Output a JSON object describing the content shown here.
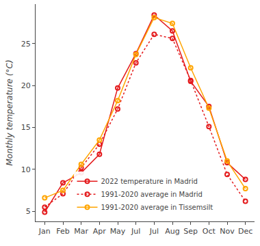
{
  "chart_data": {
    "type": "line",
    "y_label": "Monthly temperature (°C)",
    "categories": [
      "Jan",
      "Feb",
      "Mar",
      "Apr",
      "May",
      "Jul",
      "Jul",
      "Aug",
      "Sep",
      "Oct",
      "Nov",
      "Dec"
    ],
    "series": [
      {
        "name": "2022 temperature in Madrid",
        "color": "#e41a1c",
        "marker": "circle-open",
        "line_style": "solid",
        "values": [
          4.9,
          8.4,
          9.6,
          11.8,
          19.7,
          23.8,
          28.4,
          26.5,
          20.5,
          17.5,
          10.8,
          8.8
        ]
      },
      {
        "name": "1991-2020 average in Madrid",
        "color": "#e41a1c",
        "marker": "circle-open",
        "line_style": "dot",
        "values": [
          5.5,
          7.1,
          10.2,
          13.0,
          17.2,
          22.7,
          26.1,
          25.6,
          20.6,
          15.1,
          9.4,
          6.2
        ]
      },
      {
        "name": "1991-2020 average in Tissemsilt",
        "color": "#ffa500",
        "marker": "circle-open",
        "line_style": "solid",
        "values": [
          6.6,
          7.5,
          10.6,
          13.5,
          18.2,
          23.7,
          28.1,
          27.4,
          22.1,
          17.3,
          11.0,
          7.7
        ]
      }
    ],
    "ylim": [
      3.8,
      29.7
    ],
    "yticks": [
      5,
      10,
      15,
      20,
      25
    ],
    "grid": false,
    "legend": "bottom"
  }
}
